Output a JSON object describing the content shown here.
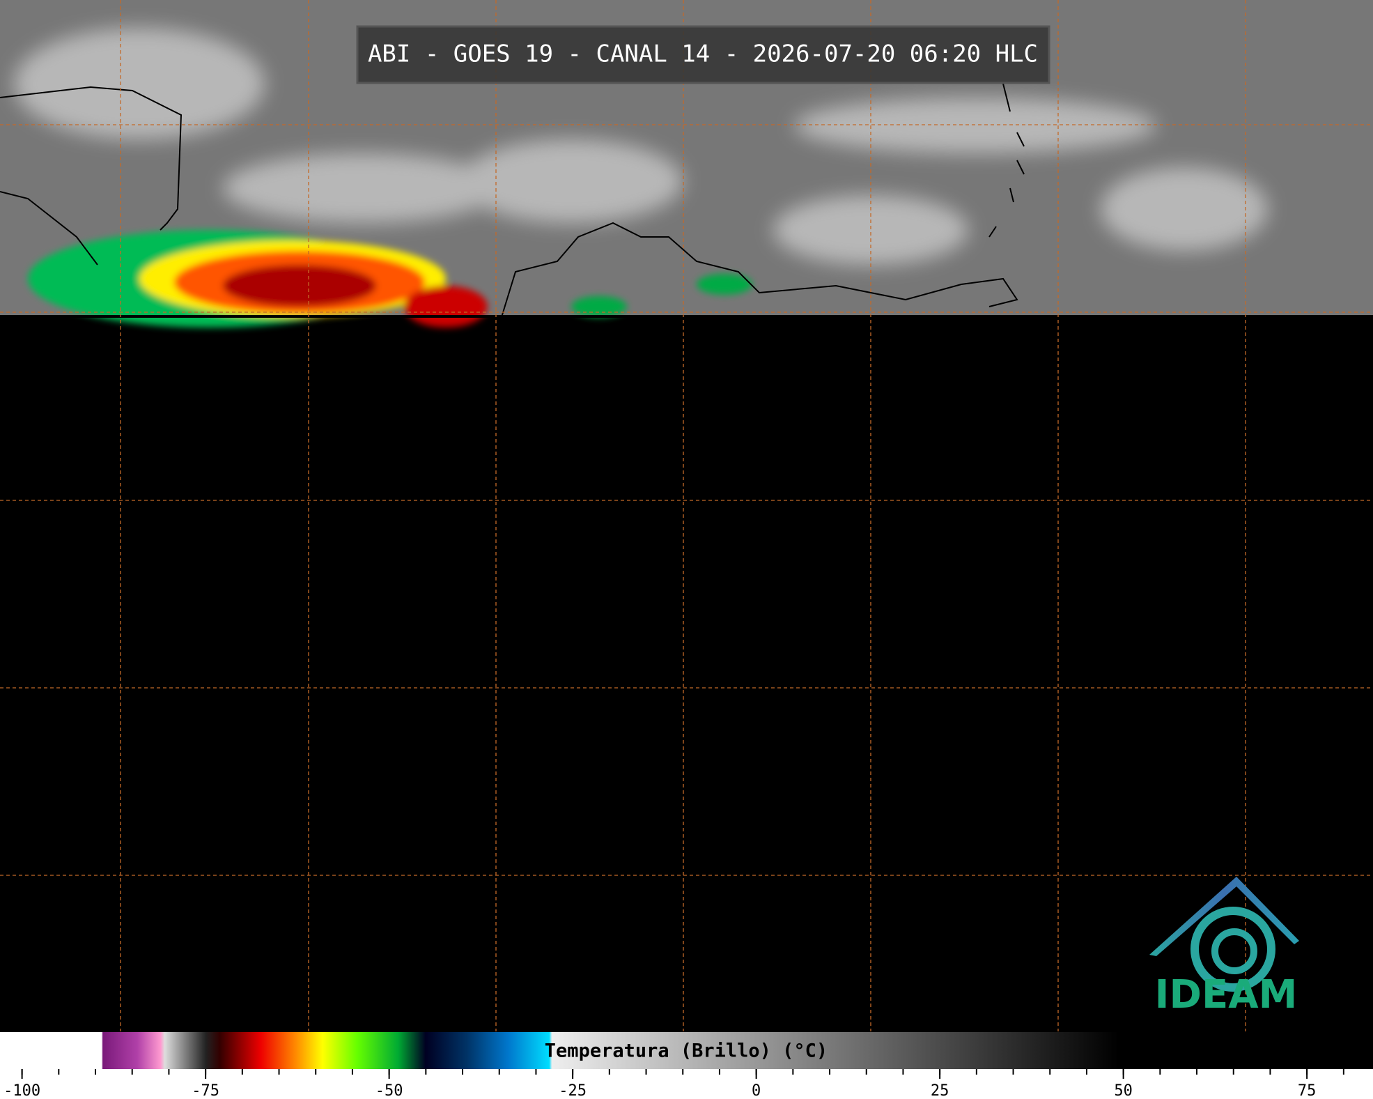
{
  "title": "ABI - GOES 19 - CANAL 14 - 2026-07-20 06:20 HLC",
  "colorbar": {
    "label": "Temperatura (Brillo) (°C)",
    "lim": [
      -103,
      84
    ],
    "ticks": [
      -100,
      -75,
      -50,
      -25,
      0,
      25,
      50,
      75
    ]
  },
  "logo": {
    "text": "IDEAM"
  }
}
